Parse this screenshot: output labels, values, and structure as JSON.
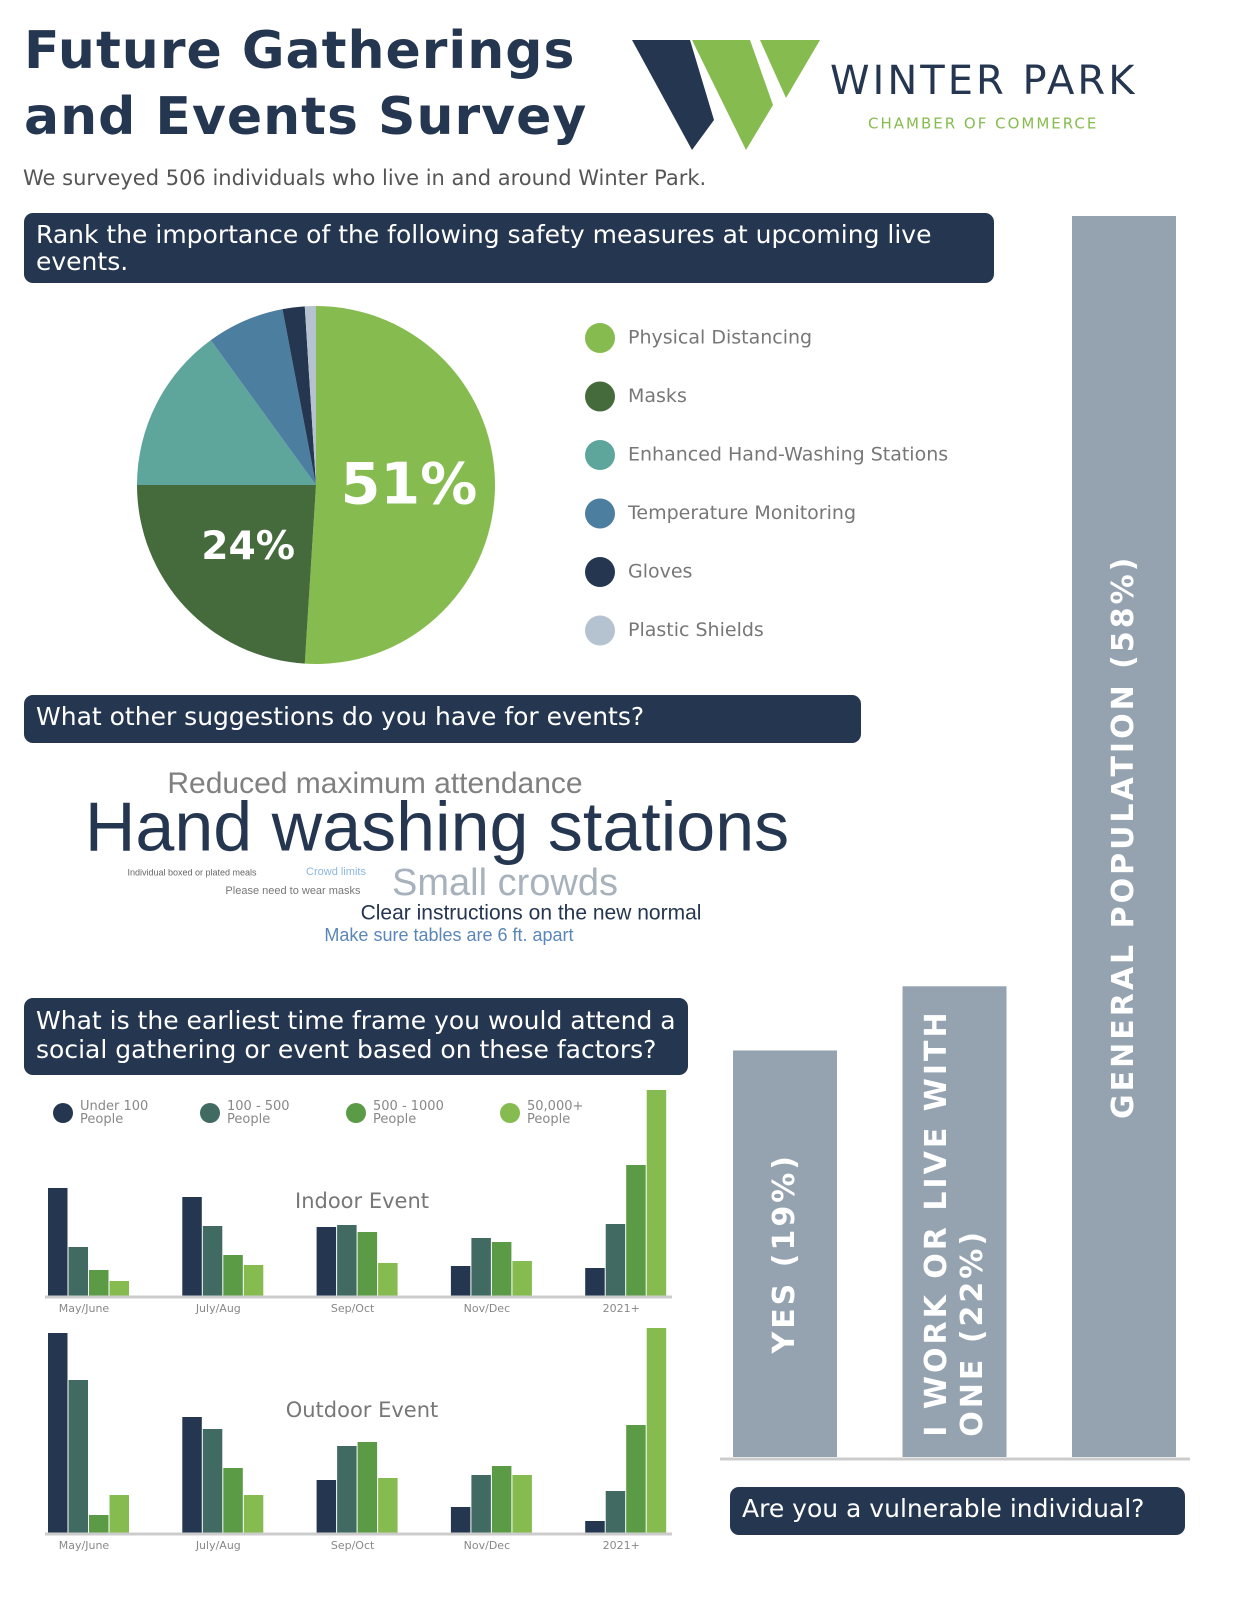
{
  "header": {
    "title": "Future Gatherings and Events Survey",
    "logo_name": "WINTER PARK",
    "logo_tagline": "CHAMBER OF COMMERCE",
    "subtitle": "We surveyed 506 individuals who live in and around Winter Park."
  },
  "chart_data": [
    {
      "type": "pie",
      "title": "Rank the importance of the following safety measures at upcoming live events.",
      "categories": [
        "Physical Distancing",
        "Masks",
        "Enhanced Hand-Washing Stations",
        "Temperature Monitoring",
        "Gloves",
        "Plastic Shields"
      ],
      "values": [
        51,
        24,
        15,
        7,
        2,
        1
      ],
      "value_labels": [
        "51%",
        "24%",
        null,
        null,
        null,
        null
      ],
      "colors": [
        "#86bc4f",
        "#456b3d",
        "#5ea59b",
        "#4c7ea0",
        "#253650",
        "#b5c2cf"
      ]
    },
    {
      "type": "grouped_bar",
      "title": "What is the earliest time frame you would attend a social gathering or event based on these factors?",
      "categories": [
        "May/June",
        "July/Aug",
        "Sep/Oct",
        "Nov/Dec",
        "2021+"
      ],
      "series": [
        {
          "name": "Under 100 People",
          "color": "#253650"
        },
        {
          "name": "100 - 500 People",
          "color": "#416b62"
        },
        {
          "name": "500 - 1000 People",
          "color": "#5b9b46"
        },
        {
          "name": "50,000+ People",
          "color": "#86bc4f"
        }
      ],
      "panels": [
        {
          "subtitle": "Indoor Event",
          "values": [
            [
              108,
              99,
              69,
              30,
              28
            ],
            [
              49,
              70,
              71,
              58,
              72
            ],
            [
              26,
              41,
              64,
              54,
              131
            ],
            [
              15,
              31,
              33,
              35,
              206
            ]
          ]
        },
        {
          "subtitle": "Outdoor Event",
          "values": [
            [
              200,
              116,
              53,
              26,
              12
            ],
            [
              153,
              104,
              87,
              58,
              42
            ],
            [
              18,
              65,
              91,
              67,
              108
            ],
            [
              38,
              38,
              55,
              58,
              205
            ]
          ]
        }
      ],
      "ylim": [
        0,
        210
      ]
    },
    {
      "type": "bar",
      "title": "Are you a vulnerable individual?",
      "categories": [
        "YES",
        "I WORK OR LIVE WITH ONE",
        "GENERAL POPULATION"
      ],
      "values": [
        19,
        22,
        58
      ],
      "value_labels": [
        "(19%)",
        "(22%)",
        "(58%)"
      ],
      "color": "#95a3b1",
      "ylim": [
        0,
        58
      ]
    }
  ],
  "suggestions": {
    "title": "What other suggestions do you have for events?",
    "words": [
      {
        "text": "Reduced maximum attendance",
        "color": "#808080"
      },
      {
        "text": "Hand washing stations",
        "color": "#253650"
      },
      {
        "text": "Individual boxed or plated meals",
        "color": "#666666"
      },
      {
        "text": "Crowd limits",
        "color": "#8ab8e0"
      },
      {
        "text": "Please need to wear masks",
        "color": "#777777"
      },
      {
        "text": "Small crowds",
        "color": "#a8b2bc"
      },
      {
        "text": "Clear instructions on the new normal",
        "color": "#253650"
      },
      {
        "text": "Make sure tables are 6 ft. apart",
        "color": "#5b86b8"
      }
    ]
  }
}
